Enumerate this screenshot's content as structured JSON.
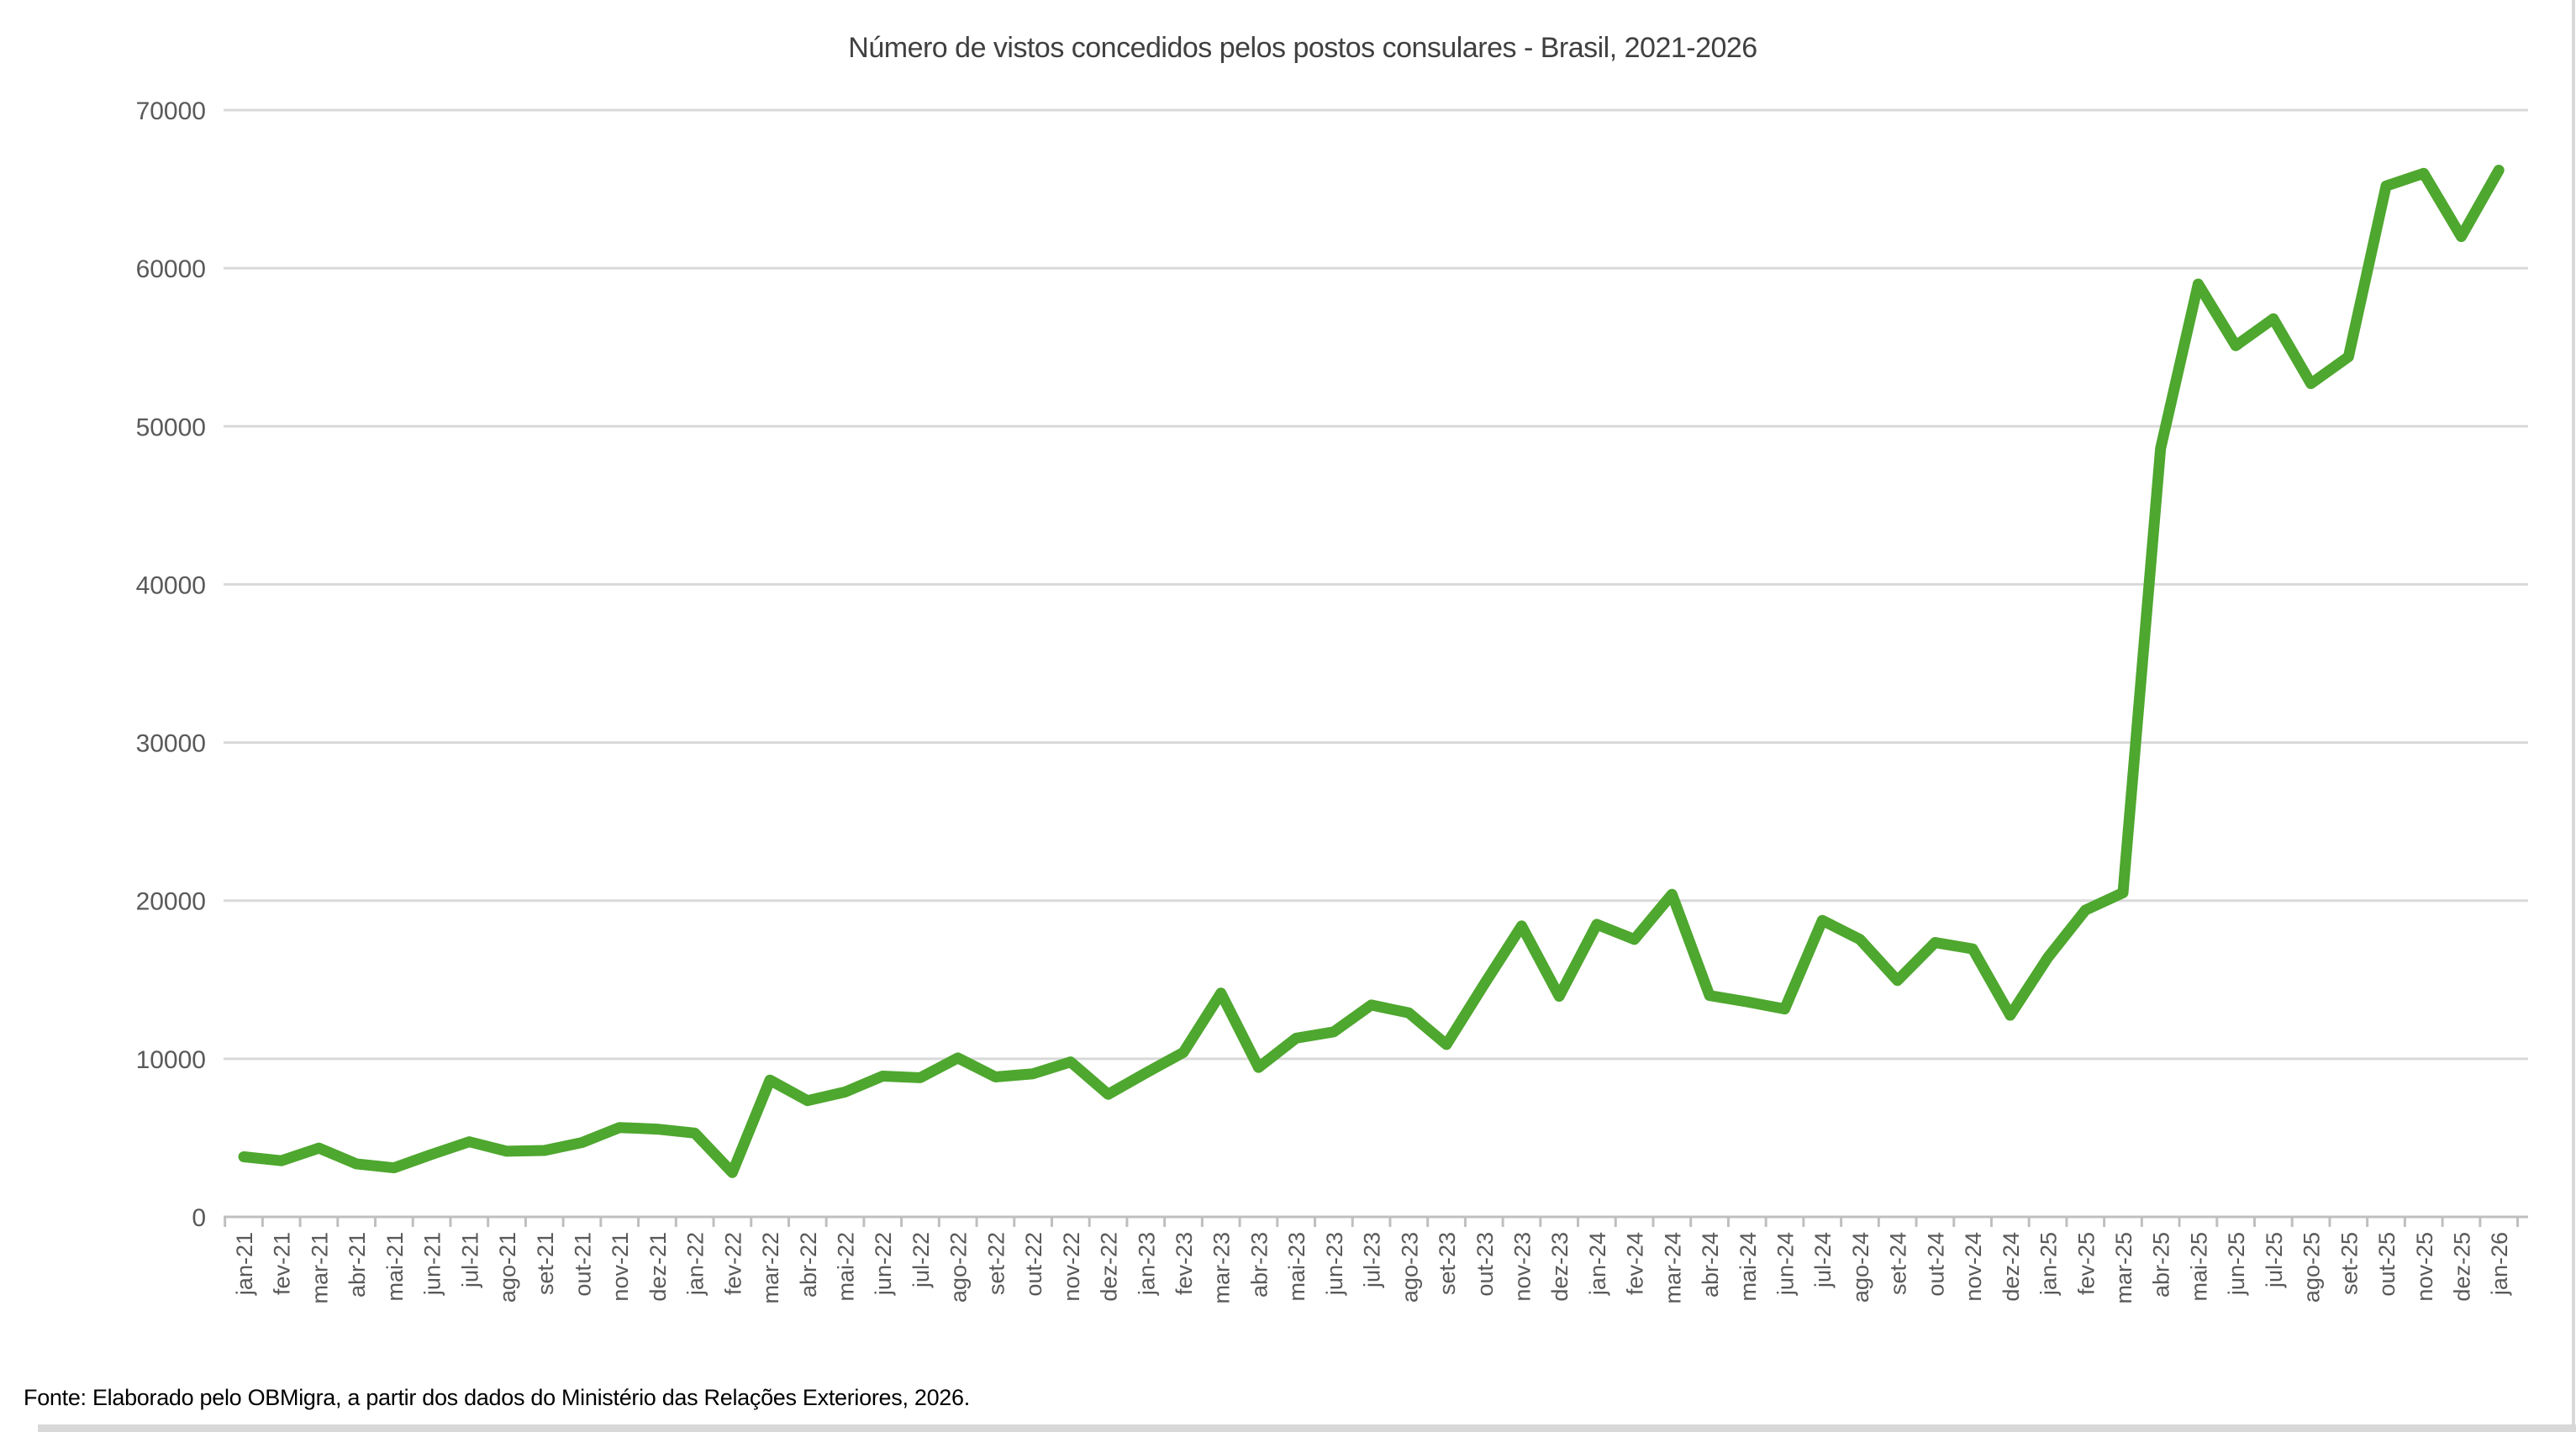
{
  "chart_data": {
    "type": "line",
    "title": "Número de vistos concedidos pelos postos consulares - Brasil, 2021-2026",
    "xlabel": "",
    "ylabel": "",
    "ylim": [
      0,
      70000
    ],
    "y_ticks": [
      0,
      10000,
      20000,
      30000,
      40000,
      50000,
      60000,
      70000
    ],
    "grid": "horizontal",
    "legend_position": "none",
    "x_labels": [
      "jan-21",
      "fev-21",
      "mar-21",
      "abr-21",
      "mai-21",
      "jun-21",
      "jul-21",
      "ago-21",
      "set-21",
      "out-21",
      "nov-21",
      "dez-21",
      "jan-22",
      "fev-22",
      "mar-22",
      "abr-22",
      "mai-22",
      "jun-22",
      "jul-22",
      "ago-22",
      "set-22",
      "out-22",
      "nov-22",
      "dez-22",
      "jan-23",
      "fev-23",
      "mar-23",
      "abr-23",
      "mai-23",
      "jun-23",
      "jul-23",
      "ago-23",
      "set-23",
      "out-23",
      "nov-23",
      "dez-23",
      "jan-24",
      "fev-24",
      "mar-24",
      "abr-24",
      "mai-24",
      "jun-24",
      "jul-24",
      "ago-24",
      "set-24",
      "out-24",
      "nov-24",
      "dez-24",
      "jan-25",
      "fev-25",
      "mar-25",
      "abr-25",
      "mai-25",
      "jun-25",
      "jul-25",
      "ago-25",
      "set-25",
      "out-25",
      "nov-25",
      "dez-25",
      "jan-26"
    ],
    "series": [
      {
        "name": "Número de vistos concedidos",
        "values": [
          3800,
          3550,
          4350,
          3350,
          3100,
          3950,
          4750,
          4150,
          4200,
          4700,
          5650,
          5550,
          5300,
          2800,
          8650,
          7350,
          7900,
          8900,
          8800,
          10050,
          8850,
          9050,
          9800,
          7750,
          9100,
          10400,
          14150,
          9450,
          11300,
          11700,
          13400,
          12900,
          10900,
          14700,
          18400,
          13950,
          18500,
          17550,
          20400,
          14000,
          13600,
          13150,
          18750,
          17550,
          14950,
          17350,
          16950,
          12750,
          16400,
          19400,
          20500,
          48600,
          59000,
          55100,
          56800,
          52700,
          54400,
          65200,
          66000,
          62000,
          66200
        ]
      }
    ]
  },
  "footer": {
    "source": "Fonte: Elaborado pelo OBMigra, a partir dos dados do Ministério das Relações Exteriores, 2026."
  },
  "colors": {
    "line": "#4EA72E",
    "gridline": "#D9D9D9",
    "axis_line": "#BFBFBF",
    "axis_text": "#595959",
    "title_text": "#404040",
    "source_text": "#000000",
    "edge_strip": "#D8D8D8"
  }
}
